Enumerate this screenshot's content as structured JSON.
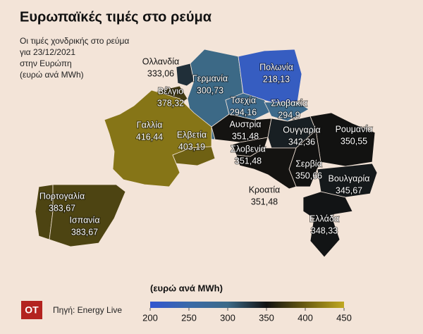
{
  "title": "Ευρωπαϊκές τιμές στο ρεύμα",
  "subtitle": [
    "Οι τιμές χονδρικής στο ρεύμα",
    "για 23/12/2021",
    "στην Ευρώπη",
    "(ευρώ ανά MWh)"
  ],
  "countries": [
    {
      "name": "Ολλανδία",
      "value": 333.06,
      "value_label": "333,06"
    },
    {
      "name": "Βέλγιο",
      "value": 378.32,
      "value_label": "378,32"
    },
    {
      "name": "Γερμανία",
      "value": 300.73,
      "value_label": "300,73"
    },
    {
      "name": "Πολωνία",
      "value": 218.13,
      "value_label": "218,13"
    },
    {
      "name": "Γαλλία",
      "value": 416.44,
      "value_label": "416,44"
    },
    {
      "name": "Ελβετία",
      "value": 403.19,
      "value_label": "403,19"
    },
    {
      "name": "Τσεχία",
      "value": 294.16,
      "value_label": "294,16"
    },
    {
      "name": "Σλοβακία",
      "value": 294.9,
      "value_label": "294,9"
    },
    {
      "name": "Αυστρία",
      "value": 351.48,
      "value_label": "351,48"
    },
    {
      "name": "Ουγγαρία",
      "value": 342.36,
      "value_label": "342,36"
    },
    {
      "name": "Ρουμανία",
      "value": 350.55,
      "value_label": "350,55"
    },
    {
      "name": "Σλοβενία",
      "value": 351.48,
      "value_label": "351,48"
    },
    {
      "name": "Σερβία",
      "value": 350.66,
      "value_label": "350,66"
    },
    {
      "name": "Κροατία",
      "value": 351.48,
      "value_label": "351,48"
    },
    {
      "name": "Βουλγαρία",
      "value": 345.67,
      "value_label": "345,67"
    },
    {
      "name": "Πορτογαλία",
      "value": 383.67,
      "value_label": "383,67"
    },
    {
      "name": "Ισπανία",
      "value": 383.67,
      "value_label": "383,67"
    },
    {
      "name": "Ελλάδα",
      "value": 348.33,
      "value_label": "348,33"
    }
  ],
  "colorbar": {
    "title": "(ευρώ ανά MWh)",
    "range": [
      200,
      450
    ],
    "ticks": [
      200,
      250,
      300,
      350,
      400,
      450
    ],
    "colors": [
      "#3355d0",
      "#3a6aa8",
      "#3d6a88",
      "#111111",
      "#6a5c12",
      "#c0a820"
    ]
  },
  "logo": "OT",
  "source": "Πηγή: Energy Live"
}
